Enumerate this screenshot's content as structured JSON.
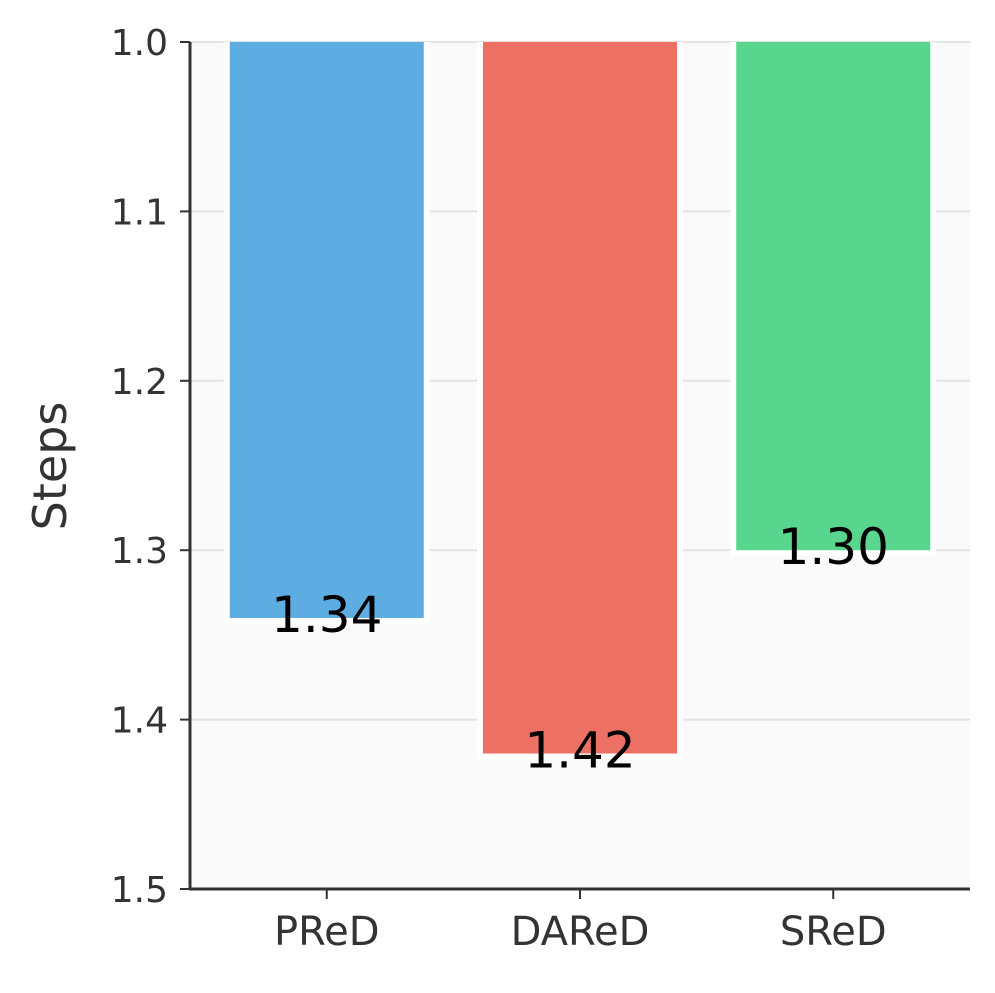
{
  "chart_data": {
    "type": "bar",
    "categories": [
      "PReD",
      "DAReD",
      "SReD"
    ],
    "values": [
      1.34,
      1.42,
      1.3
    ],
    "value_labels": [
      "1.34",
      "1.42",
      "1.30"
    ],
    "colors": [
      "#5DADE2",
      "#EC7063",
      "#58D68D"
    ],
    "ylabel": "Steps",
    "ylim": [
      1.0,
      1.5
    ],
    "y_inverted": true,
    "yticks": [
      1.0,
      1.1,
      1.2,
      1.3,
      1.4,
      1.5
    ],
    "ytick_labels": [
      "1.0",
      "1.1",
      "1.2",
      "1.3",
      "1.4",
      "1.5"
    ],
    "grid": true
  }
}
